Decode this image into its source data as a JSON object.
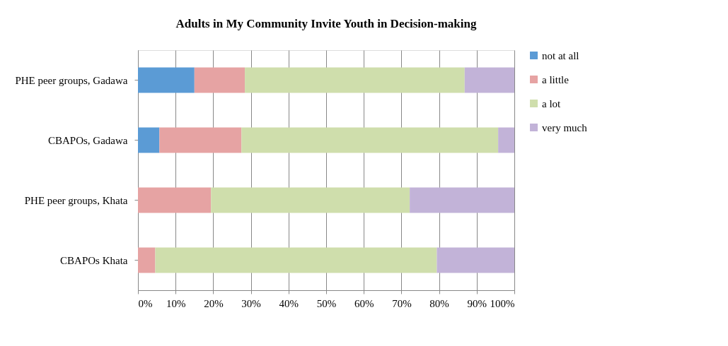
{
  "chart_data": {
    "type": "bar",
    "title": "Adults in My Community Invite Youth in Decision-making",
    "orientation": "horizontal",
    "stacked": true,
    "categories": [
      "PHE peer groups, Gadawa",
      "CBAPOs, Gadawa",
      "PHE peer groups, Khata",
      "CBAPOs Khata"
    ],
    "series": [
      {
        "name": "not at all",
        "color": "#5b9bd5",
        "values": [
          15,
          5.7,
          0,
          0
        ]
      },
      {
        "name": "a little",
        "color": "#e6a3a3",
        "values": [
          13.4,
          21.8,
          19.4,
          4.6
        ]
      },
      {
        "name": "a lot",
        "color": "#cfdeac",
        "values": [
          58.4,
          68.2,
          52.8,
          74.8
        ]
      },
      {
        "name": "very much",
        "color": "#c2b3d8",
        "values": [
          13.2,
          4.3,
          27.8,
          20.6
        ]
      }
    ],
    "xlim": [
      0,
      100
    ],
    "xticks": [
      {
        "value": 0,
        "label": "0%"
      },
      {
        "value": 10,
        "label": "10%"
      },
      {
        "value": 20,
        "label": "20%"
      },
      {
        "value": 30,
        "label": "30%"
      },
      {
        "value": 40,
        "label": "40%"
      },
      {
        "value": 50,
        "label": "50%"
      },
      {
        "value": 60,
        "label": "60%"
      },
      {
        "value": 70,
        "label": "70%"
      },
      {
        "value": 80,
        "label": "80%"
      },
      {
        "value": 90,
        "label": "90%"
      },
      {
        "value": 100,
        "label": "100%"
      }
    ],
    "grid": "x",
    "legend": "right"
  }
}
